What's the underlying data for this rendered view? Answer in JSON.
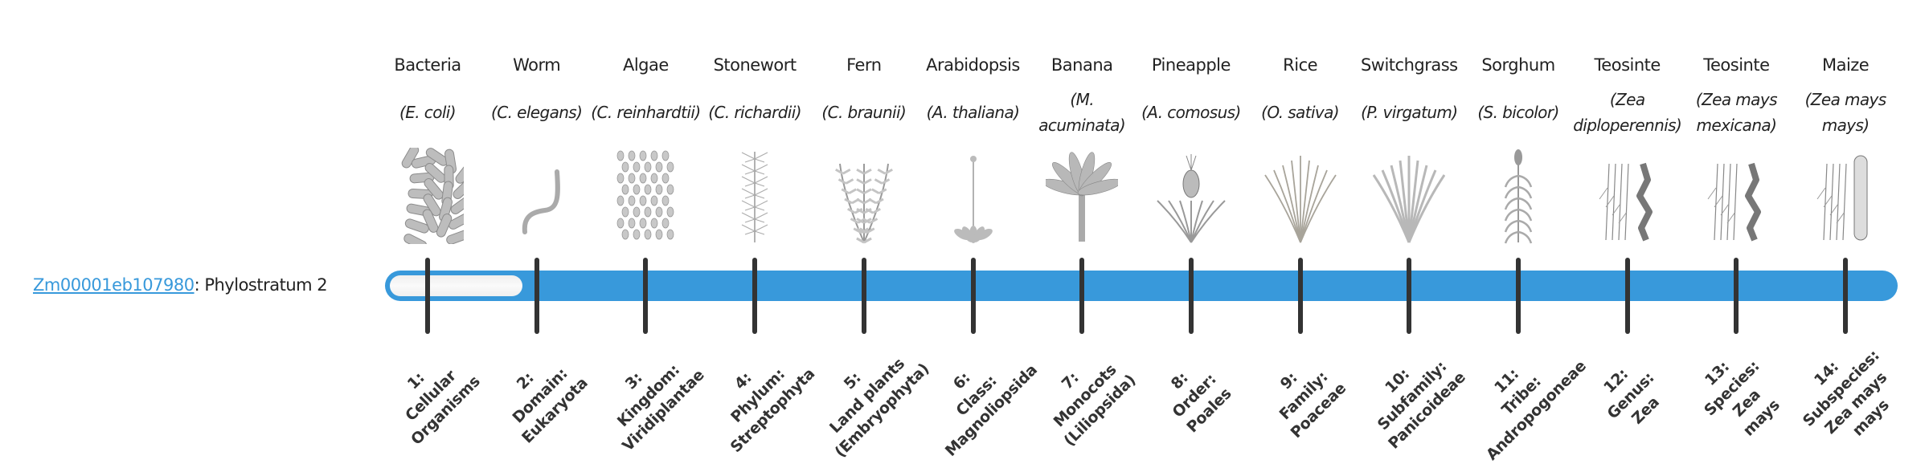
{
  "gene": {
    "id": "Zm00001eb107980",
    "separator": ":",
    "label": "Phylostratum 2",
    "phylostratum": 2,
    "accent_color": "#3899db"
  },
  "organisms": [
    {
      "name": "Bacteria",
      "latin": "(E. coli)",
      "icon": "bacteria-illustration"
    },
    {
      "name": "Worm",
      "latin": "(C. elegans)",
      "icon": "worm-illustration"
    },
    {
      "name": "Algae",
      "latin": "(C. reinhardtii)",
      "icon": "algae-illustration"
    },
    {
      "name": "Stonewort",
      "latin": "(C. richardii)",
      "icon": "stonewort-illustration"
    },
    {
      "name": "Fern",
      "latin": "(C. braunii)",
      "icon": "fern-illustration"
    },
    {
      "name": "Arabidopsis",
      "latin": "(A. thaliana)",
      "icon": "arabidopsis-illustration"
    },
    {
      "name": "Banana",
      "latin": "(M. acuminata)",
      "icon": "banana-illustration"
    },
    {
      "name": "Pineapple",
      "latin": "(A. comosus)",
      "icon": "pineapple-illustration"
    },
    {
      "name": "Rice",
      "latin": "(O. sativa)",
      "icon": "rice-illustration"
    },
    {
      "name": "Switchgrass",
      "latin": "(P. virgatum)",
      "icon": "switchgrass-illustration"
    },
    {
      "name": "Sorghum",
      "latin": "(S. bicolor)",
      "icon": "sorghum-illustration"
    },
    {
      "name": "Teosinte",
      "latin": "(Zea diploperennis)",
      "icon": "teosinte-illustration"
    },
    {
      "name": "Teosinte",
      "latin": "(Zea mays mexicana)",
      "icon": "teosinte-illustration"
    },
    {
      "name": "Maize",
      "latin": "(Zea mays mays)",
      "icon": "maize-illustration"
    }
  ],
  "strata": [
    {
      "lines": [
        "1:",
        "Cellular",
        "Organisms"
      ]
    },
    {
      "lines": [
        "2:",
        "Domain:",
        "Eukaryota"
      ]
    },
    {
      "lines": [
        "3:",
        "Kingdom:",
        "Viridiplantae"
      ]
    },
    {
      "lines": [
        "4:",
        "Phylum:",
        "Streptophyta"
      ]
    },
    {
      "lines": [
        "5:",
        "Land plants",
        "(Embryophyta)"
      ]
    },
    {
      "lines": [
        "6:",
        "Class:",
        "Magnoliopsida"
      ]
    },
    {
      "lines": [
        "7:",
        "Monocots",
        "(Liliopsida)"
      ]
    },
    {
      "lines": [
        "8:",
        "Order:",
        "Poales"
      ]
    },
    {
      "lines": [
        "9:",
        "Family:",
        "Poaceae"
      ]
    },
    {
      "lines": [
        "10:",
        "Subfamily:",
        "Panicoideae"
      ]
    },
    {
      "lines": [
        "11:",
        "Tribe:",
        "Andropogoneae"
      ]
    },
    {
      "lines": [
        "12:",
        "Genus:",
        "Zea"
      ]
    },
    {
      "lines": [
        "13:",
        "Species:",
        "Zea",
        "mays"
      ]
    },
    {
      "lines": [
        "14:",
        "Subspecies:",
        "Zea mays",
        "mays"
      ]
    }
  ]
}
